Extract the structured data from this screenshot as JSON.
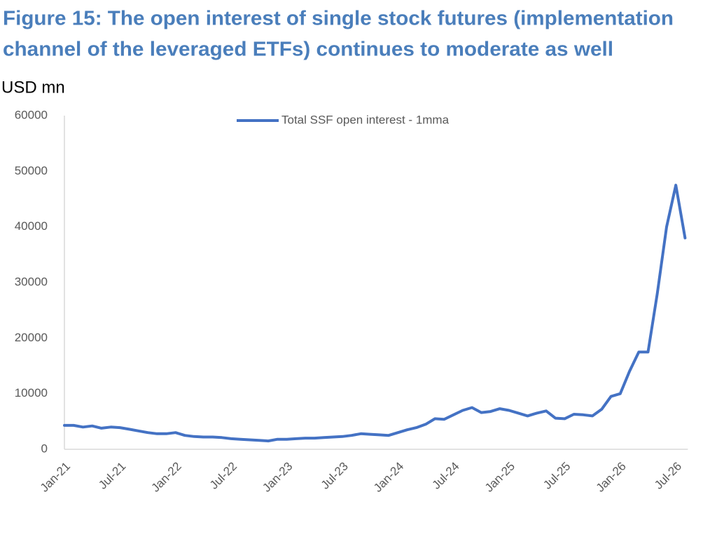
{
  "chart_data": {
    "type": "line",
    "title": [
      "Figure 15: The open interest of single stock futures (implementation",
      "channel of the leveraged ETFs) continues to moderate as well"
    ],
    "ylabel": "USD mn",
    "categories": [
      "Jan-21",
      null,
      null,
      null,
      null,
      null,
      "Jul-21",
      null,
      null,
      null,
      null,
      null,
      "Jan-22",
      null,
      null,
      null,
      null,
      null,
      "Jul-22",
      null,
      null,
      null,
      null,
      null,
      "Jan-23",
      null,
      null,
      null,
      null,
      null,
      "Jul-23",
      null,
      null,
      null,
      null,
      null,
      "Jan-24",
      null,
      null,
      null,
      null,
      null,
      "Jul-24",
      null,
      null,
      null,
      null,
      null,
      "Jan-25",
      null,
      null,
      null,
      null,
      null,
      "Jul-25",
      null,
      null,
      null,
      null,
      null,
      "Jan-26",
      null,
      null,
      null,
      null,
      null,
      "Jul-26",
      null
    ],
    "series": [
      {
        "name": "Total SSF open interest - 1mma",
        "color": "#4472c4",
        "values": [
          4300,
          4300,
          4000,
          4200,
          3800,
          4000,
          3900,
          3600,
          3300,
          3000,
          2800,
          2800,
          3000,
          2500,
          2300,
          2200,
          2200,
          2100,
          1900,
          1800,
          1700,
          1600,
          1500,
          1800,
          1800,
          1900,
          2000,
          2000,
          2100,
          2200,
          2300,
          2500,
          2800,
          2700,
          2600,
          2500,
          3000,
          3500,
          3900,
          4500,
          5500,
          5400,
          6200,
          7000,
          7500,
          6600,
          6800,
          7300,
          7000,
          6500,
          6000,
          6500,
          6900,
          5600,
          5500,
          6300,
          6200,
          6000,
          7200,
          9500,
          10000,
          14000,
          17500,
          17500,
          28000,
          40000,
          47500,
          38000
        ]
      }
    ],
    "ylim": [
      0,
      60000
    ],
    "yticks": [
      0,
      10000,
      20000,
      30000,
      40000,
      50000,
      60000
    ],
    "legend": "top",
    "grid": false
  }
}
